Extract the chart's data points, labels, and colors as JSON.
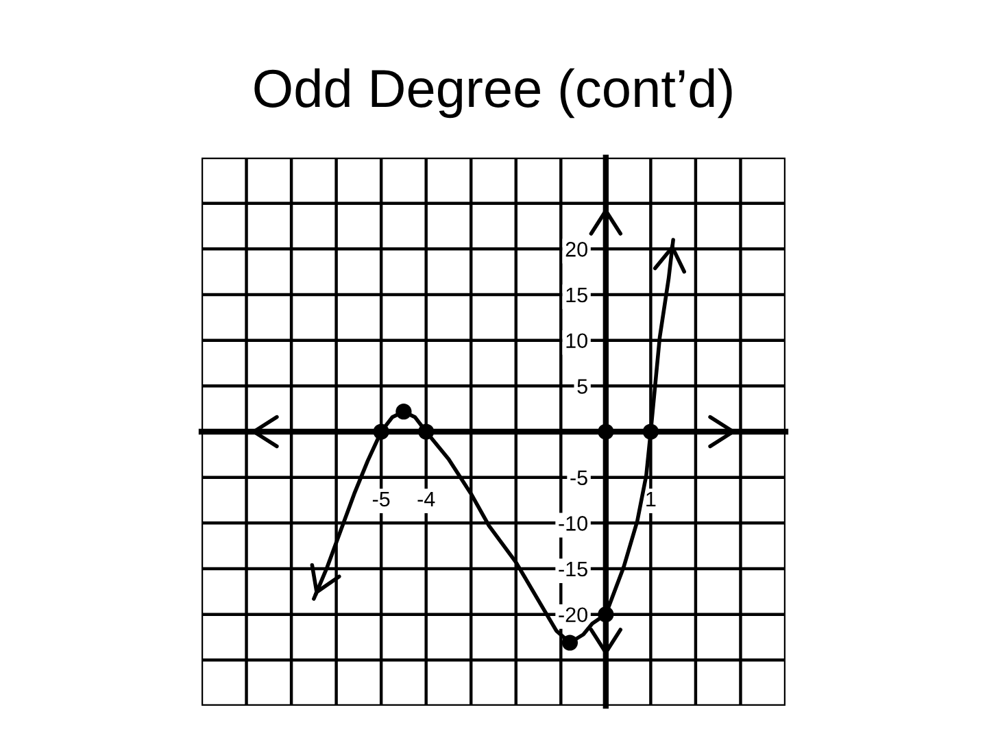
{
  "chart_data": {
    "type": "line",
    "title": "Odd Degree (cont’d)",
    "series": [
      {
        "type": "line",
        "color": "#000000",
        "x": [
          -6.5,
          -6.2,
          -5.9,
          -5.6,
          -5.3,
          -5,
          -4.75,
          -4.5,
          -4.25,
          -4,
          -3.5,
          -3,
          -2.6,
          -2,
          -1.4,
          -1.1,
          -0.8,
          -0.5,
          -0.3,
          0,
          0.4,
          0.7,
          0.9,
          1,
          1.2,
          1.4,
          1.5
        ],
        "values": [
          -18.3,
          -14.8,
          -10.8,
          -6.8,
          -3.2,
          0,
          1.6,
          2.2,
          1.6,
          0,
          -3,
          -6.8,
          -10.3,
          -14.3,
          -19.3,
          -21.8,
          -23.1,
          -22.2,
          -21,
          -20,
          -14.8,
          -9.8,
          -4.8,
          0,
          10.3,
          16.8,
          21
        ]
      },
      {
        "type": "scatter",
        "color": "#000000",
        "marker": "circle",
        "x": [
          -5,
          -4.5,
          -4,
          -0.8,
          0,
          0,
          1
        ],
        "values": [
          0,
          2.2,
          0,
          -23.1,
          0,
          -20,
          0
        ]
      }
    ],
    "xlim": [
      -9,
      4
    ],
    "xticks": [
      {
        "value": -9,
        "label": null
      },
      {
        "value": -8,
        "label": null
      },
      {
        "value": -7,
        "label": null
      },
      {
        "value": -6,
        "label": null
      },
      -5,
      -4,
      {
        "value": -3,
        "label": null
      },
      {
        "value": -2,
        "label": null
      },
      {
        "value": -1,
        "label": null
      },
      {
        "value": 0,
        "label": null
      },
      1,
      {
        "value": 2,
        "label": null
      },
      {
        "value": 3,
        "label": null
      },
      {
        "value": 4,
        "label": null
      }
    ],
    "ylim": [
      -30,
      30
    ],
    "yticks": [
      {
        "value": -30,
        "label": null
      },
      {
        "value": -25,
        "label": null
      },
      -20,
      -15,
      -10,
      -5,
      {
        "value": 0,
        "label": null
      },
      5,
      10,
      15,
      20,
      {
        "value": 25,
        "label": null
      },
      {
        "value": 30,
        "label": null
      }
    ],
    "grid": true
  }
}
